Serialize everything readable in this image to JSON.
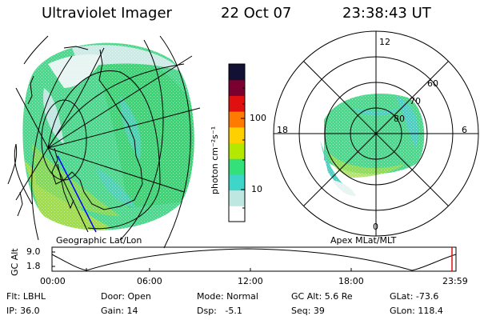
{
  "header": {
    "title": "Ultraviolet Imager",
    "date": "22 Oct 07",
    "time": "23:38:43 UT"
  },
  "colorbar": {
    "label": "photon cm⁻²s⁻¹",
    "ticks": [
      "100",
      "10"
    ],
    "colors": [
      "#ffffff",
      "#bfe7e2",
      "#3ed6c8",
      "#33e07a",
      "#b5e800",
      "#ffd000",
      "#ff7a00",
      "#e01010",
      "#7a0030",
      "#111133"
    ]
  },
  "left_map": {
    "label": "Geographic Lat/Lon"
  },
  "right_map": {
    "label": "Apex MLat/MLT",
    "mlt_labels": {
      "top": "12",
      "left": "18",
      "right": "6",
      "bottom": "0"
    },
    "lat_labels": [
      "60",
      "70",
      "80"
    ]
  },
  "altitude_plot": {
    "ylabel": "GC Alt",
    "yticks": [
      "9.0",
      "1.8"
    ],
    "xticks": [
      "00:00",
      "06:00",
      "12:00",
      "18:00",
      "23:59"
    ],
    "marker_color": "#e01010"
  },
  "footer": {
    "flt": "Flt: LBHL",
    "ip": "IP: 36.0",
    "door": "Door: Open",
    "gain": "Gain: 14",
    "mode": "Mode: Normal",
    "dsp": "Dsp:   -5.1",
    "gcalt": "GC Alt: 5.6 Re",
    "seq": "Seq: 39",
    "glat": "GLat: -73.6",
    "glon": "GLon: 118.4"
  }
}
